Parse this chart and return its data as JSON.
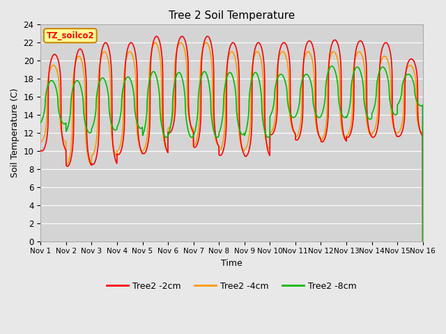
{
  "title": "Tree 2 Soil Temperature",
  "xlabel": "Time",
  "ylabel": "Soil Temperature (C)",
  "annotation": "TZ_soilco2",
  "ylim": [
    0,
    24
  ],
  "yticks": [
    0,
    2,
    4,
    6,
    8,
    10,
    12,
    14,
    16,
    18,
    20,
    22,
    24
  ],
  "xtick_labels": [
    "Nov 1",
    "Nov 2",
    "Nov 3",
    "Nov 4",
    "Nov 5",
    "Nov 6",
    "Nov 7",
    "Nov 8",
    "Nov 9",
    "Nov 10",
    "Nov 11",
    "Nov 12",
    "Nov 13",
    "Nov 14",
    "Nov 15",
    "Nov 16"
  ],
  "legend_labels": [
    "Tree2 -2cm",
    "Tree2 -4cm",
    "Tree2 -8cm"
  ],
  "legend_colors": [
    "#ff0000",
    "#ff9900",
    "#00bb00"
  ],
  "background_color": "#e8e8e8",
  "plot_bg_color": "#d4d4d4",
  "annotation_bg": "#ffff99",
  "annotation_border": "#cc8800",
  "line_width": 1.2,
  "num_days": 15,
  "samples_per_day": 144
}
